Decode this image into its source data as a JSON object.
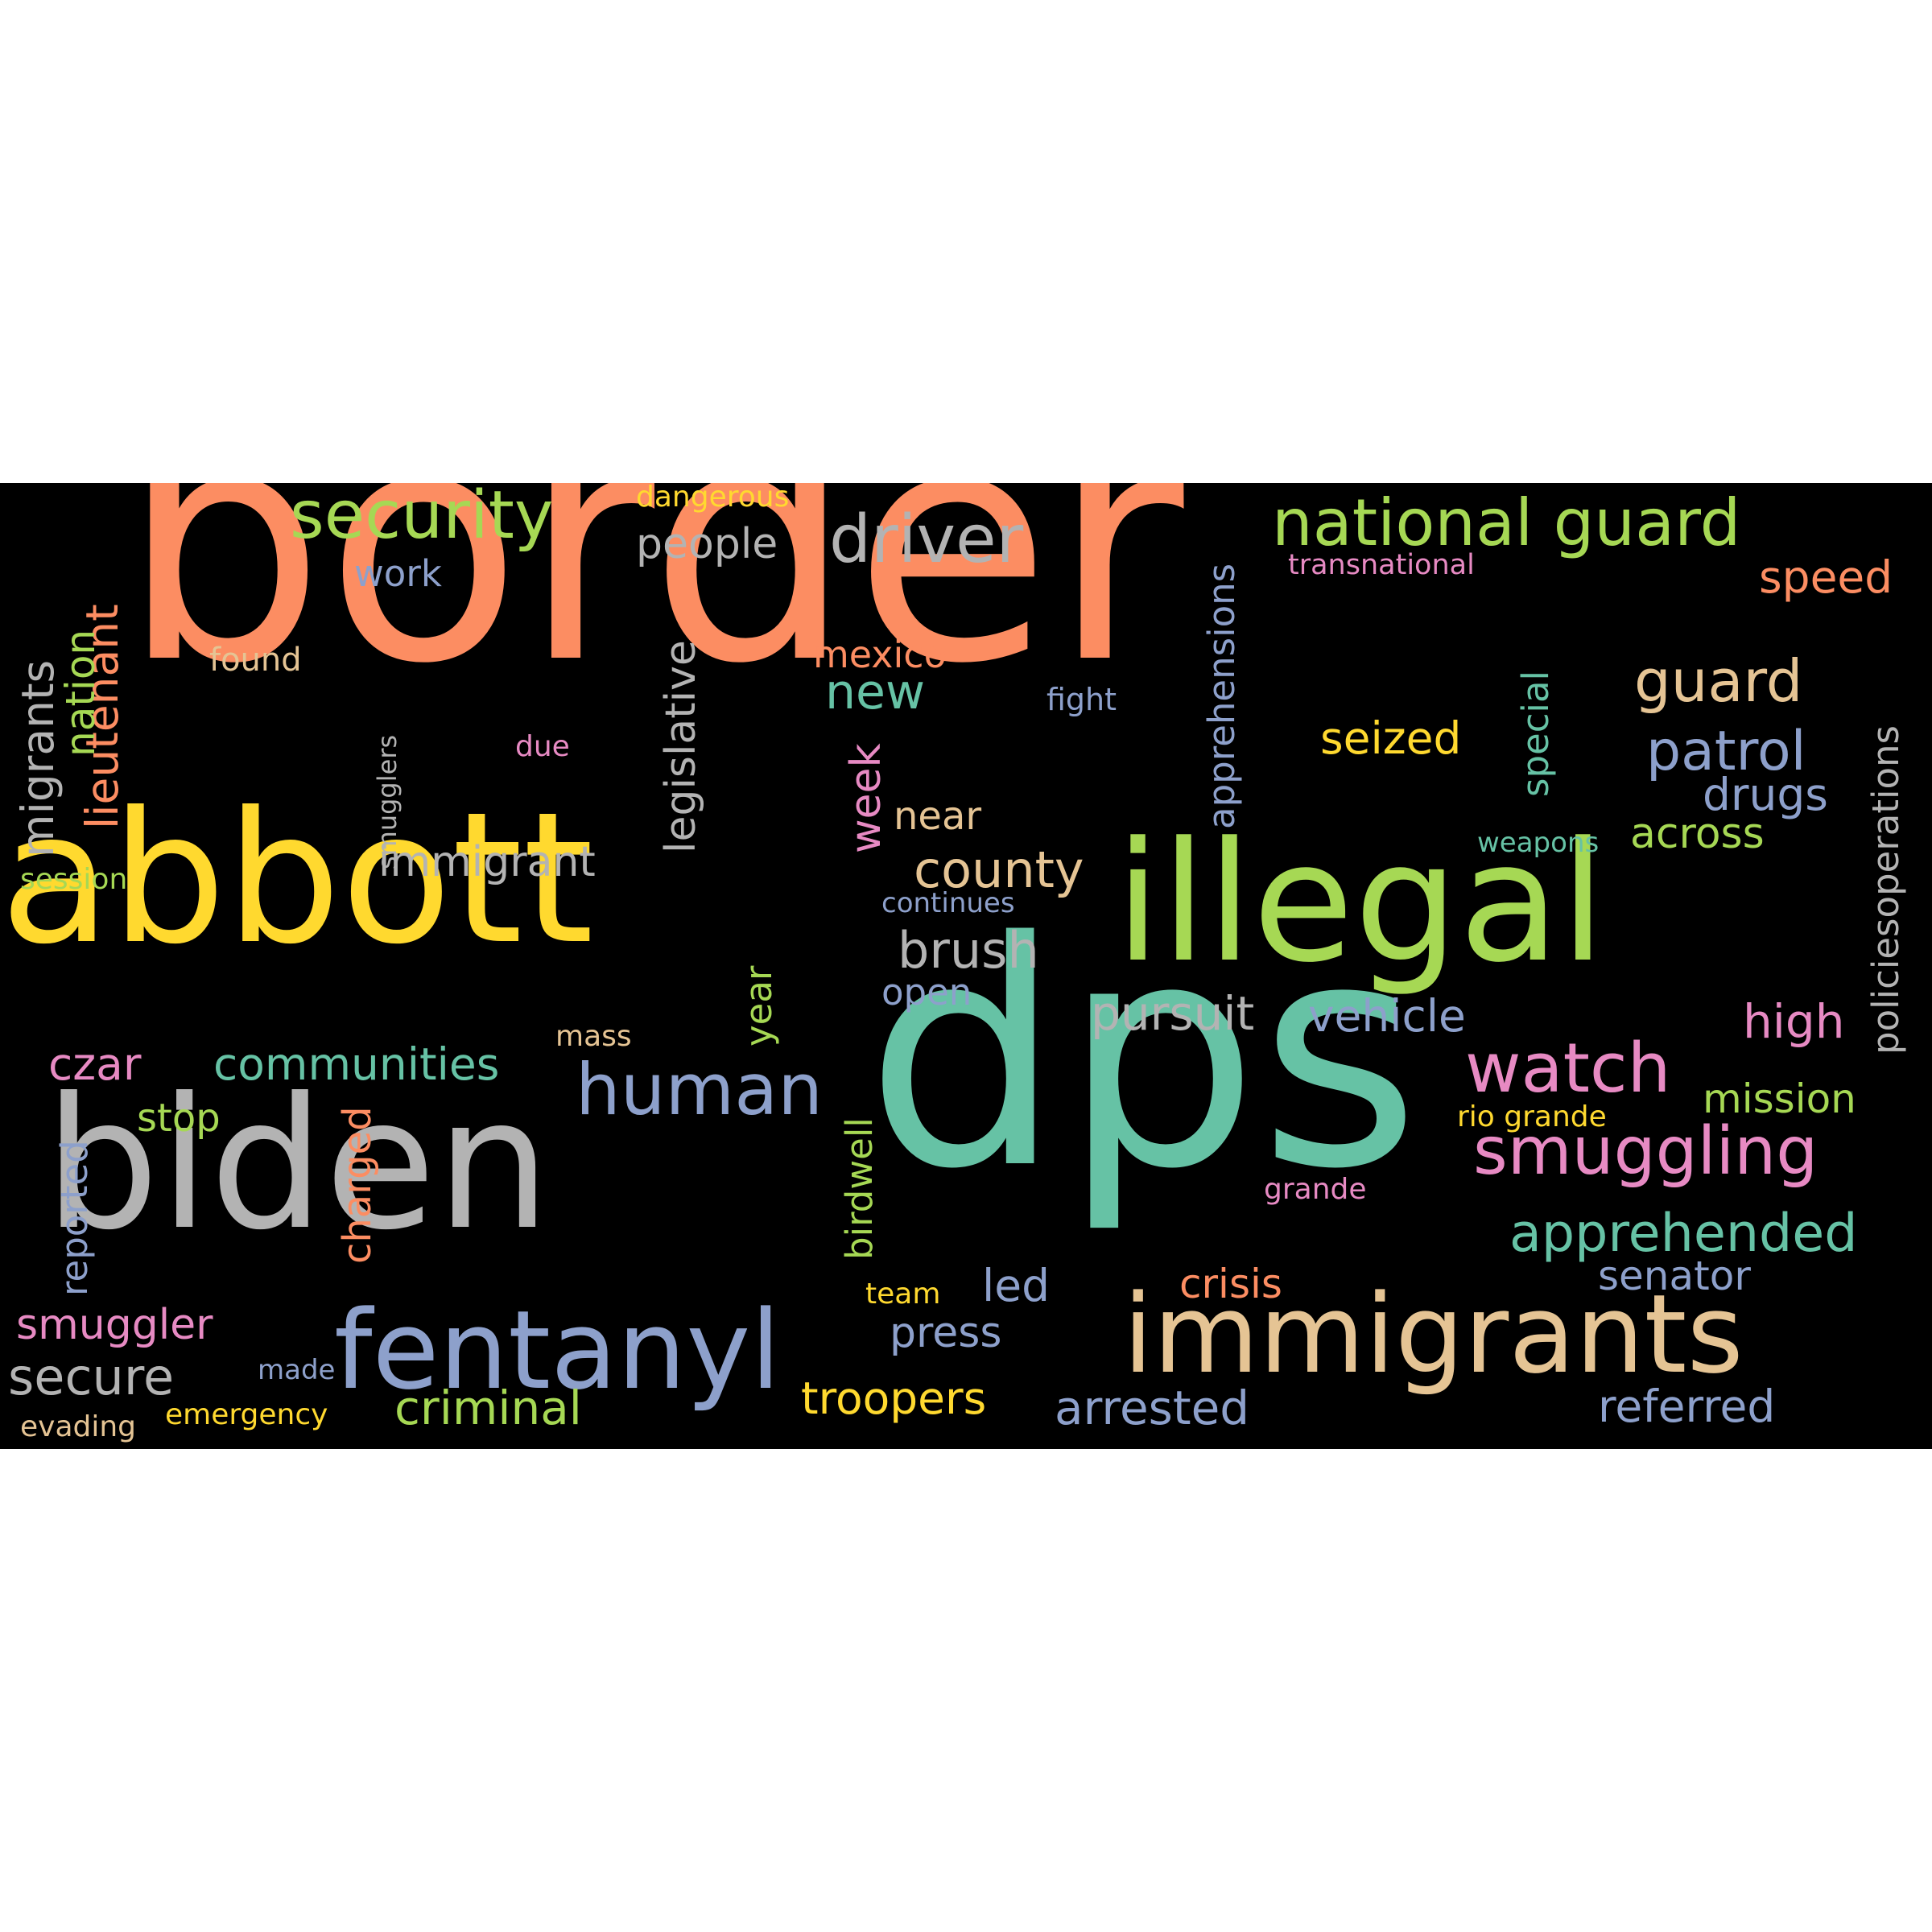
{
  "background": "#000000",
  "palette": {
    "orange": "#fc8d62",
    "yellow": "#ffd92f",
    "green": "#a6d854",
    "teal": "#66c2a5",
    "blue": "#8da0cb",
    "pink": "#e78ac3",
    "tan": "#e5c494",
    "gray": "#b3b3b3"
  },
  "words": [
    {
      "key": "border",
      "text": "border",
      "color": "#fc8d62",
      "weight": 1.0
    },
    {
      "key": "abbott",
      "text": "abbott",
      "color": "#ffd92f",
      "weight": 0.58
    },
    {
      "key": "dps",
      "text": "dps",
      "color": "#66c2a5",
      "weight": 0.97
    },
    {
      "key": "biden",
      "text": "biden",
      "color": "#b3b3b3",
      "weight": 0.58
    },
    {
      "key": "illegal",
      "text": "illegal",
      "color": "#a6d854",
      "weight": 0.52
    },
    {
      "key": "immigrants",
      "text": "immigrants",
      "color": "#e5c494",
      "weight": 0.32
    },
    {
      "key": "fentanyl",
      "text": "fentanyl",
      "color": "#8da0cb",
      "weight": 0.32
    },
    {
      "key": "security",
      "text": "security",
      "color": "#a6d854",
      "weight": 0.15
    },
    {
      "key": "driver",
      "text": "driver",
      "color": "#b3b3b3",
      "weight": 0.15
    },
    {
      "key": "national_guard",
      "text": "national guard",
      "color": "#a6d854",
      "weight": 0.15
    },
    {
      "key": "human",
      "text": "human",
      "color": "#8da0cb",
      "weight": 0.17
    },
    {
      "key": "smuggling",
      "text": "smuggling",
      "color": "#e78ac3",
      "weight": 0.15
    },
    {
      "key": "watch",
      "text": "watch",
      "color": "#e78ac3",
      "weight": 0.15
    },
    {
      "key": "apprehended",
      "text": "apprehended",
      "color": "#66c2a5",
      "weight": 0.12
    },
    {
      "key": "guard",
      "text": "guard",
      "color": "#e5c494",
      "weight": 0.13
    },
    {
      "key": "patrol",
      "text": "patrol",
      "color": "#8da0cb",
      "weight": 0.13
    },
    {
      "key": "migrants",
      "text": "migrants",
      "color": "#b3b3b3",
      "weight": 0.11
    },
    {
      "key": "lieutenant",
      "text": "lieutenant",
      "color": "#fc8d62",
      "weight": 0.09
    },
    {
      "key": "nation",
      "text": "nation",
      "color": "#a6d854",
      "weight": 0.09
    },
    {
      "key": "people",
      "text": "people",
      "color": "#b3b3b3",
      "weight": 0.08
    },
    {
      "key": "work",
      "text": "work",
      "color": "#8da0cb",
      "weight": 0.07
    },
    {
      "key": "dangerous",
      "text": "dangerous",
      "color": "#ffd92f",
      "weight": 0.06
    },
    {
      "key": "legislative",
      "text": "legislative",
      "color": "#b3b3b3",
      "weight": 0.09
    },
    {
      "key": "mexico",
      "text": "mexico",
      "color": "#fc8d62",
      "weight": 0.08
    },
    {
      "key": "new",
      "text": "new",
      "color": "#66c2a5",
      "weight": 0.1
    },
    {
      "key": "week",
      "text": "week",
      "color": "#e78ac3",
      "weight": 0.1
    },
    {
      "key": "county",
      "text": "county",
      "color": "#e5c494",
      "weight": 0.1
    },
    {
      "key": "brush",
      "text": "brush",
      "color": "#b3b3b3",
      "weight": 0.1
    },
    {
      "key": "seized",
      "text": "seized",
      "color": "#ffd92f",
      "weight": 0.09
    },
    {
      "key": "speed",
      "text": "speed",
      "color": "#fc8d62",
      "weight": 0.09
    },
    {
      "key": "drugs",
      "text": "drugs",
      "color": "#8da0cb",
      "weight": 0.09
    },
    {
      "key": "across",
      "text": "across",
      "color": "#a6d854",
      "weight": 0.08
    },
    {
      "key": "apprehensions",
      "text": "apprehensions",
      "color": "#8da0cb",
      "weight": 0.08
    },
    {
      "key": "special",
      "text": "special",
      "color": "#66c2a5",
      "weight": 0.08
    },
    {
      "key": "policiesoperations",
      "text": "policiesoperations",
      "color": "#b3b3b3",
      "weight": 0.08
    },
    {
      "key": "transnational",
      "text": "transnational",
      "color": "#e78ac3",
      "weight": 0.05
    },
    {
      "key": "found",
      "text": "found",
      "color": "#e5c494",
      "weight": 0.06
    },
    {
      "key": "smugglers",
      "text": "smugglers",
      "color": "#b3b3b3",
      "weight": 0.05
    },
    {
      "key": "due",
      "text": "due",
      "color": "#e78ac3",
      "weight": 0.05
    },
    {
      "key": "fight",
      "text": "fight",
      "color": "#8da0cb",
      "weight": 0.05
    },
    {
      "key": "immigrant",
      "text": "immigrant",
      "color": "#b3b3b3",
      "weight": 0.09
    },
    {
      "key": "near",
      "text": "near",
      "color": "#e5c494",
      "weight": 0.08
    },
    {
      "key": "session",
      "text": "session",
      "color": "#a6d854",
      "weight": 0.05
    },
    {
      "key": "weapons",
      "text": "weapons",
      "color": "#66c2a5",
      "weight": 0.05
    },
    {
      "key": "continues",
      "text": "continues",
      "color": "#8da0cb",
      "weight": 0.05
    },
    {
      "key": "open",
      "text": "open",
      "color": "#8da0cb",
      "weight": 0.08
    },
    {
      "key": "pursuit",
      "text": "pursuit",
      "color": "#b3b3b3",
      "weight": 0.1
    },
    {
      "key": "vehicle",
      "text": "vehicle",
      "color": "#8da0cb",
      "weight": 0.1
    },
    {
      "key": "high",
      "text": "high",
      "color": "#e78ac3",
      "weight": 0.1
    },
    {
      "key": "czar",
      "text": "czar",
      "color": "#e78ac3",
      "weight": 0.1
    },
    {
      "key": "communities",
      "text": "communities",
      "color": "#66c2a5",
      "weight": 0.1
    },
    {
      "key": "mass",
      "text": "mass",
      "color": "#e5c494",
      "weight": 0.05
    },
    {
      "key": "year",
      "text": "year",
      "color": "#a6d854",
      "weight": 0.07
    },
    {
      "key": "stop",
      "text": "stop",
      "color": "#a6d854",
      "weight": 0.08
    },
    {
      "key": "charged",
      "text": "charged",
      "color": "#fc8d62",
      "weight": 0.08
    },
    {
      "key": "reported",
      "text": "reported",
      "color": "#8da0cb",
      "weight": 0.08
    },
    {
      "key": "birdwell",
      "text": "birdwell",
      "color": "#a6d854",
      "weight": 0.07
    },
    {
      "key": "mission",
      "text": "mission",
      "color": "#a6d854",
      "weight": 0.08
    },
    {
      "key": "rio_grande",
      "text": "rio grande",
      "color": "#ffd92f",
      "weight": 0.05
    },
    {
      "key": "grande",
      "text": "grande",
      "color": "#e78ac3",
      "weight": 0.05
    },
    {
      "key": "senator",
      "text": "senator",
      "color": "#8da0cb",
      "weight": 0.08
    },
    {
      "key": "led",
      "text": "led",
      "color": "#8da0cb",
      "weight": 0.09
    },
    {
      "key": "crisis",
      "text": "crisis",
      "color": "#fc8d62",
      "weight": 0.08
    },
    {
      "key": "team",
      "text": "team",
      "color": "#ffd92f",
      "weight": 0.05
    },
    {
      "key": "press",
      "text": "press",
      "color": "#8da0cb",
      "weight": 0.08
    },
    {
      "key": "smuggler",
      "text": "smuggler",
      "color": "#e78ac3",
      "weight": 0.09
    },
    {
      "key": "secure",
      "text": "secure",
      "color": "#b3b3b3",
      "weight": 0.1
    },
    {
      "key": "made",
      "text": "made",
      "color": "#8da0cb",
      "weight": 0.05
    },
    {
      "key": "criminal",
      "text": "criminal",
      "color": "#a6d854",
      "weight": 0.1
    },
    {
      "key": "troopers",
      "text": "troopers",
      "color": "#ffd92f",
      "weight": 0.09
    },
    {
      "key": "arrested",
      "text": "arrested",
      "color": "#8da0cb",
      "weight": 0.1
    },
    {
      "key": "referred",
      "text": "referred",
      "color": "#8da0cb",
      "weight": 0.09
    },
    {
      "key": "evading",
      "text": "evading",
      "color": "#e5c494",
      "weight": 0.05
    },
    {
      "key": "emergency",
      "text": "emergency",
      "color": "#ffd92f",
      "weight": 0.05
    }
  ]
}
